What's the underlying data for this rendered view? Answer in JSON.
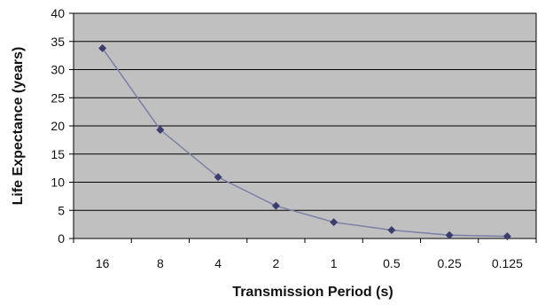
{
  "chart_data": {
    "type": "line",
    "title": "",
    "xlabel": "Transmission Period (s)",
    "ylabel": "Life Expectance (years)",
    "categories": [
      "16",
      "8",
      "4",
      "2",
      "1",
      "0.5",
      "0.25",
      "0.125"
    ],
    "series": [
      {
        "values": [
          33.8,
          19.3,
          10.9,
          5.8,
          2.9,
          1.5,
          0.6,
          0.4
        ]
      }
    ],
    "ylim": [
      0,
      40
    ],
    "yticks": [
      "0",
      "5",
      "10",
      "15",
      "20",
      "25",
      "30",
      "35",
      "40"
    ],
    "grid": "horizontal",
    "legend": "none",
    "colors": {
      "plot_background": "#c0c0c0",
      "line": "#7c7fa8",
      "marker": "#3a3d6e",
      "grid": "#000000"
    }
  }
}
